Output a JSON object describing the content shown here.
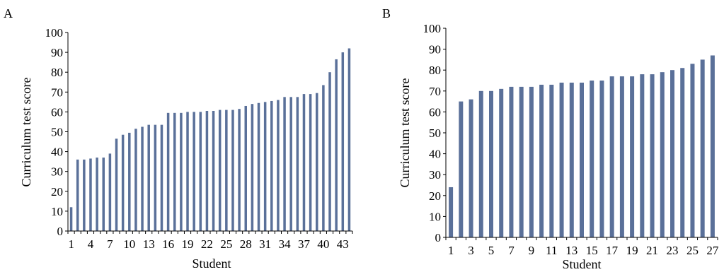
{
  "chart_data": [
    {
      "type": "bar",
      "panel_label": "A",
      "xlabel": "Student",
      "ylabel": "Curriculum test score",
      "ylim": [
        0,
        100
      ],
      "yticks": [
        0,
        10,
        20,
        30,
        40,
        50,
        60,
        70,
        80,
        90,
        100
      ],
      "xtick_labels": [
        "1",
        "4",
        "7",
        "10",
        "13",
        "16",
        "19",
        "22",
        "25",
        "28",
        "31",
        "34",
        "37",
        "40",
        "43"
      ],
      "xtick_indices": [
        1,
        4,
        7,
        10,
        13,
        16,
        19,
        22,
        25,
        28,
        31,
        34,
        37,
        40,
        43
      ],
      "bar_color": "#5a7099",
      "grid": false,
      "values": [
        12,
        36,
        36,
        36.5,
        37,
        37,
        39,
        46.5,
        48.5,
        49.5,
        51.5,
        52.5,
        53.5,
        53.5,
        53.5,
        59.5,
        59.5,
        59.5,
        60,
        60,
        60,
        60.5,
        60.5,
        61,
        61,
        61,
        61.5,
        63,
        64,
        64.5,
        65,
        65.5,
        66,
        67.5,
        67.5,
        67.5,
        69,
        69,
        69.5,
        73.5,
        80,
        86.5,
        90,
        92
      ]
    },
    {
      "type": "bar",
      "panel_label": "B",
      "xlabel": "Student",
      "ylabel": "Curriculum test score",
      "ylim": [
        0,
        100
      ],
      "yticks": [
        0,
        10,
        20,
        30,
        40,
        50,
        60,
        70,
        80,
        90,
        100
      ],
      "xtick_labels": [
        "1",
        "3",
        "5",
        "7",
        "9",
        "11",
        "13",
        "15",
        "17",
        "19",
        "21",
        "23",
        "25",
        "27"
      ],
      "xtick_indices": [
        1,
        3,
        5,
        7,
        9,
        11,
        13,
        15,
        17,
        19,
        21,
        23,
        25,
        27
      ],
      "bar_color": "#5a7099",
      "grid": false,
      "values": [
        24,
        65,
        66,
        70,
        70,
        71,
        72,
        72,
        72,
        73,
        73,
        74,
        74,
        74,
        75,
        75,
        77,
        77,
        77,
        78,
        78,
        79,
        80,
        81,
        83,
        85,
        87
      ]
    }
  ]
}
